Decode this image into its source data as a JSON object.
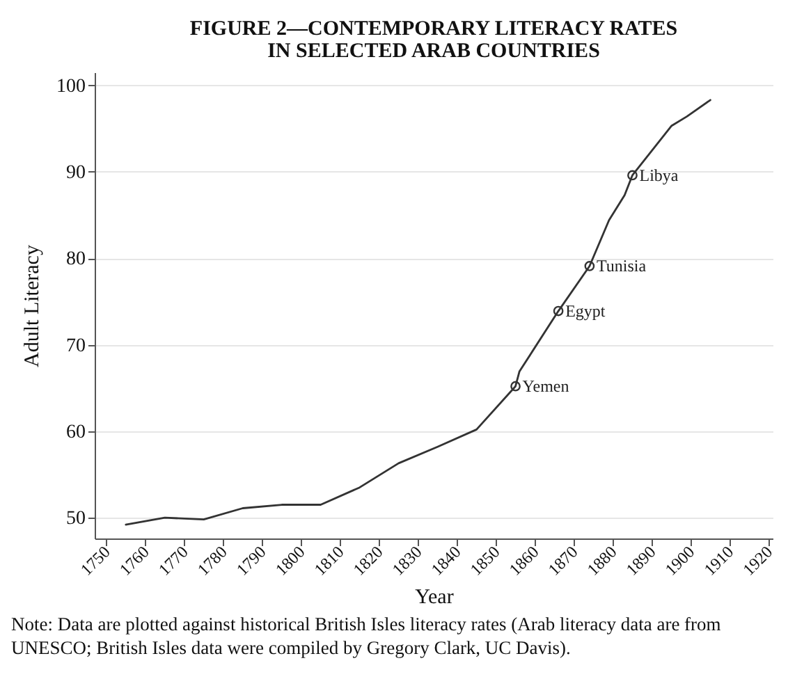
{
  "chart_data": {
    "type": "line",
    "title": "FIGURE 2—CONTEMPORARY LITERACY RATES\nIN SELECTED ARAB COUNTRIES",
    "xlabel": "Year",
    "ylabel": "Adult Literacy",
    "xlim": [
      1747,
      1921
    ],
    "xticks": [
      1750,
      1760,
      1770,
      1780,
      1790,
      1800,
      1810,
      1820,
      1830,
      1840,
      1850,
      1860,
      1870,
      1880,
      1890,
      1900,
      1910,
      1920
    ],
    "ylim": [
      47.6,
      101.5
    ],
    "yticks": [
      50,
      60,
      70,
      80,
      90,
      100
    ],
    "grid": "y",
    "line_style": "solid",
    "series": [
      {
        "color": "#333333",
        "marker": "none",
        "x": [
          1755,
          1765,
          1775,
          1785,
          1795,
          1805,
          1815,
          1825,
          1835,
          1845,
          1855,
          1856,
          1866,
          1874,
          1879,
          1883,
          1885,
          1895,
          1899,
          1905
        ],
        "values": [
          49.2,
          50.0,
          49.8,
          51.1,
          51.5,
          51.5,
          53.5,
          56.3,
          58.2,
          60.2,
          65.2,
          66.9,
          73.9,
          79.1,
          84.4,
          87.3,
          89.6,
          95.3,
          96.4,
          98.3
        ]
      },
      {
        "type": "scatter",
        "color": "#333333",
        "marker": "circle",
        "x": [
          1855,
          1866,
          1874,
          1885
        ],
        "values": [
          65.2,
          73.9,
          79.1,
          89.6
        ]
      }
    ],
    "annotations": [
      {
        "text": "Yemen",
        "x": 1855,
        "y": 65.2
      },
      {
        "text": "Egypt",
        "x": 1866,
        "y": 73.9
      },
      {
        "text": "Tunisia",
        "x": 1874,
        "y": 79.1
      },
      {
        "text": "Libya",
        "x": 1885,
        "y": 89.6
      },
      "Note: Data are plotted against historical British Isles literacy rates (Arab literacy data are from UNESCO; British Isles data were compiled by Gregory Clark, UC Davis)."
    ]
  }
}
